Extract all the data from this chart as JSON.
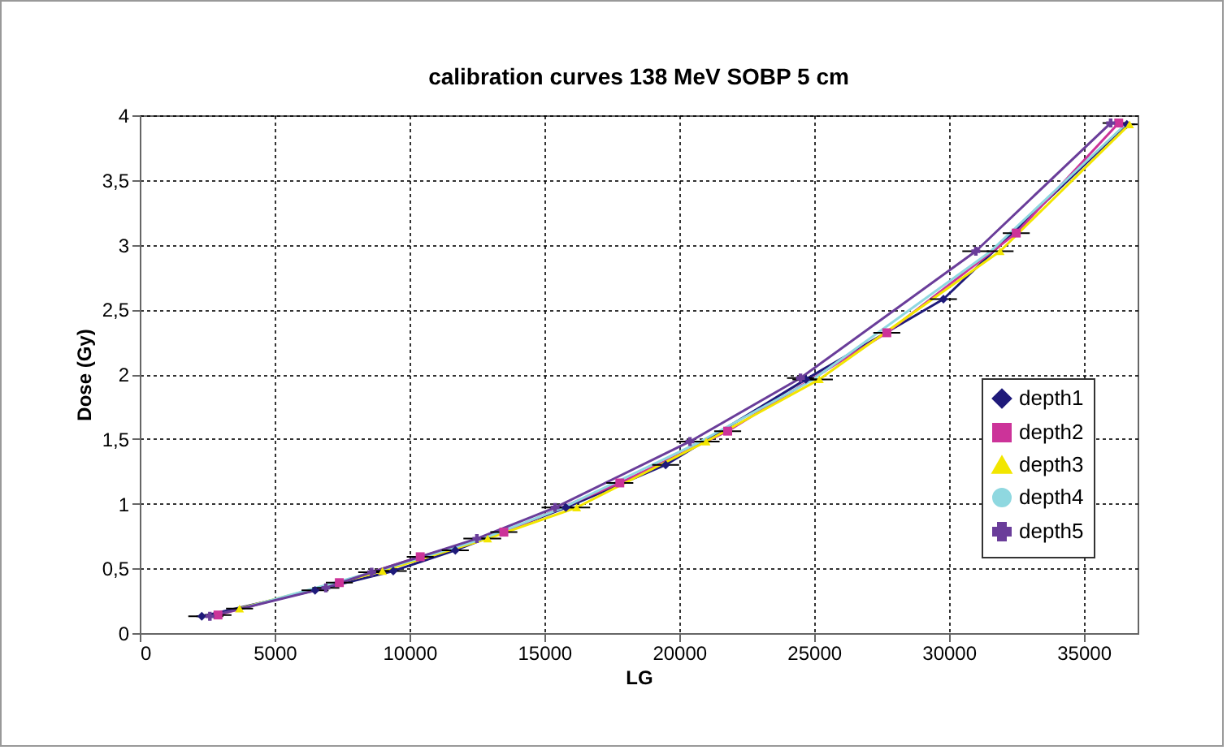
{
  "chart_data": {
    "type": "line",
    "title": "calibration curves 138 MeV SOBP 5 cm",
    "xlabel": "LG",
    "ylabel": "Dose (Gy)",
    "xlim": [
      0,
      37000
    ],
    "xticks": [
      0,
      5000,
      10000,
      15000,
      20000,
      25000,
      30000,
      35000
    ],
    "ylim": [
      0,
      4
    ],
    "yticks": [
      0,
      {
        "value": 0.5,
        "label": "0,5"
      },
      1,
      {
        "value": 1.5,
        "label": "1,5"
      },
      2,
      {
        "value": 2.5,
        "label": "2,5"
      },
      3,
      {
        "value": 3.5,
        "label": "3,5"
      },
      4
    ],
    "grid": true,
    "legend": "right",
    "line_style": "solid",
    "series": [
      {
        "name": "depth1",
        "color": "#1f1a7a",
        "marker": "diamond",
        "x": [
          2300,
          6500,
          9400,
          11700,
          15800,
          19500,
          24700,
          29800,
          36600
        ],
        "values": [
          0.13,
          0.33,
          0.48,
          0.64,
          0.97,
          1.3,
          1.96,
          2.58,
          3.93
        ],
        "xerrors": [
          500,
          500,
          500,
          500,
          500,
          500,
          500,
          500,
          300
        ]
      },
      {
        "name": "depth2",
        "color": "#cc3399",
        "marker": "square",
        "x": [
          2900,
          7400,
          10400,
          13500,
          17800,
          21800,
          27700,
          32500,
          36300
        ],
        "values": [
          0.14,
          0.39,
          0.59,
          0.78,
          1.16,
          1.56,
          2.32,
          3.09,
          3.94
        ],
        "xerrors": [
          500,
          500,
          500,
          500,
          500,
          500,
          500,
          500,
          300
        ]
      },
      {
        "name": "depth3",
        "color": "#f2e600",
        "marker": "triangle",
        "x": [
          3700,
          9000,
          12900,
          16200,
          21000,
          25200,
          31900,
          36700
        ],
        "values": [
          0.19,
          0.48,
          0.73,
          0.97,
          1.48,
          1.96,
          2.95,
          3.93
        ],
        "xerrors": [
          500,
          500,
          500,
          500,
          500,
          500,
          500,
          300
        ]
      },
      {
        "name": "depth4",
        "color": "#8fd8e0",
        "marker": "none",
        "x": [
          3600,
          8800,
          12600,
          15600,
          20700,
          24900,
          31500,
          36500
        ],
        "values": [
          0.18,
          0.48,
          0.72,
          0.96,
          1.47,
          1.95,
          2.94,
          3.92
        ]
      },
      {
        "name": "depth5",
        "color": "#6a3d9a",
        "marker": "cross",
        "x": [
          2600,
          6900,
          8600,
          12500,
          15400,
          20400,
          24500,
          31000,
          36000
        ],
        "values": [
          0.13,
          0.35,
          0.47,
          0.73,
          0.97,
          1.48,
          1.97,
          2.95,
          3.94
        ],
        "xerrors": [
          500,
          500,
          500,
          500,
          500,
          500,
          500,
          500,
          300
        ]
      }
    ]
  }
}
